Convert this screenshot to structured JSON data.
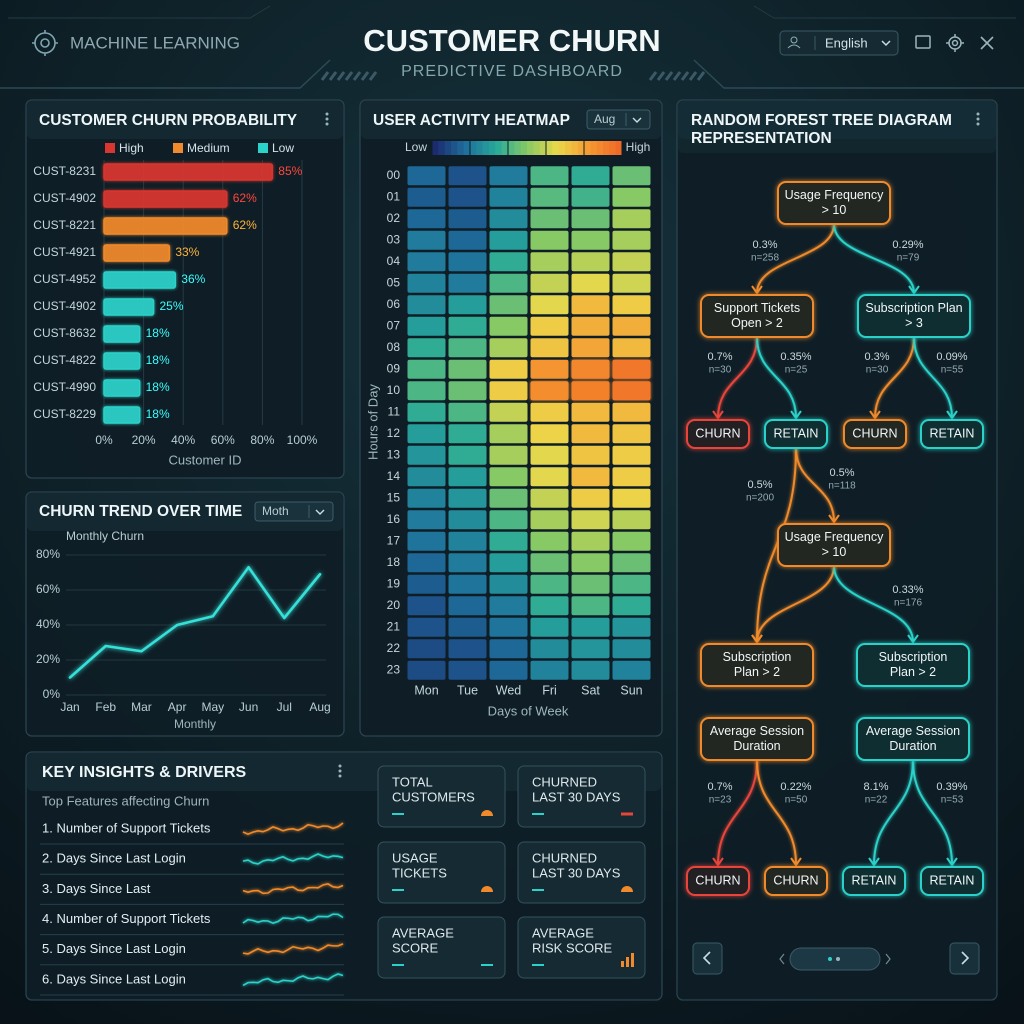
{
  "header": {
    "brand": "MACHINE LEARNING",
    "title": "CUSTOMER CHURN",
    "subtitle": "PREDICTIVE DASHBOARD",
    "language": "English"
  },
  "chart_data": [
    {
      "type": "bar",
      "title": "CUSTOMER CHURN PROBABILITY",
      "x_label": "Customer ID",
      "legend": [
        {
          "name": "High",
          "color": "#d8362f"
        },
        {
          "name": "Medium",
          "color": "#f08a2c"
        },
        {
          "name": "Low",
          "color": "#2bd2c9"
        }
      ],
      "categories": [
        "CUST-8231",
        "CUST-4902",
        "CUST-8221",
        "CUST-4921",
        "CUST-4952",
        "CUST-4902",
        "CUST-8632",
        "CUST-4822",
        "CUST-4990",
        "CUST-8229"
      ],
      "values": [
        85,
        62,
        62,
        33,
        36,
        25,
        18,
        18,
        18,
        18
      ],
      "value_labels": [
        "85%",
        "62%",
        "62%",
        "33%",
        "36%",
        "25%",
        "18%",
        "18%",
        "18%",
        "18%"
      ],
      "colors": [
        "#d8362f",
        "#d8362f",
        "#f08a2c",
        "#f08a2c",
        "#2bd2c9",
        "#2bd2c9",
        "#2bd2c9",
        "#2bd2c9",
        "#2bd2c9",
        "#2bd2c9"
      ],
      "xlim": [
        0,
        100
      ],
      "xticks": [
        {
          "value": 0,
          "label": "0%"
        },
        {
          "value": 20,
          "label": "20%"
        },
        {
          "value": 40,
          "label": "40%"
        },
        {
          "value": 60,
          "label": "60%"
        },
        {
          "value": 80,
          "label": "80%"
        },
        {
          "value": 100,
          "label": "100%"
        }
      ],
      "grid": true
    },
    {
      "type": "line",
      "title": "CHURN TREND OVER TIME",
      "dropdown": "Moth",
      "x_label": "Monthly",
      "categories": [
        "Jan",
        "Feb",
        "Mar",
        "Apr",
        "May",
        "Jun",
        "Jul",
        "Aug"
      ],
      "series": [
        {
          "name": "Monthly Churn",
          "color": "#35e0d8",
          "values": [
            10,
            28,
            25,
            40,
            45,
            73,
            44,
            69
          ]
        }
      ],
      "ylim": [
        0,
        80
      ],
      "yticks": [
        {
          "value": 0,
          "label": "0%"
        },
        {
          "value": 20,
          "label": "20%"
        },
        {
          "value": 40,
          "label": "40%"
        },
        {
          "value": 60,
          "label": "60%"
        },
        {
          "value": 80,
          "label": "80%"
        }
      ]
    },
    {
      "type": "heatmap",
      "title": "USER ACTIVITY HEATMAP",
      "dropdown": "Aug",
      "x_label": "Days of Week",
      "y_label": "Hours of Day",
      "colorbar_labels": [
        "Low",
        "High"
      ],
      "colorscale": [
        "#1c2a6e",
        "#1e6f9c",
        "#27a99a",
        "#86c965",
        "#ecd84a",
        "#f59a32",
        "#ef6a27"
      ],
      "zlim": [
        0,
        100
      ],
      "x_categories": [
        "Mon",
        "Tue",
        "Wed",
        "Fri",
        "Sat",
        "Sun"
      ],
      "y_categories": [
        "00",
        "01",
        "02",
        "03",
        "04",
        "05",
        "06",
        "07",
        "08",
        "09",
        "10",
        "11",
        "12",
        "13",
        "14",
        "15",
        "16",
        "17",
        "18",
        "19",
        "20",
        "21",
        "22",
        "23"
      ],
      "values": [
        [
          15,
          10,
          20,
          40,
          35,
          45
        ],
        [
          12,
          10,
          22,
          42,
          38,
          50
        ],
        [
          15,
          12,
          25,
          45,
          45,
          55
        ],
        [
          20,
          15,
          30,
          50,
          50,
          55
        ],
        [
          20,
          18,
          35,
          55,
          58,
          60
        ],
        [
          22,
          20,
          40,
          60,
          65,
          62
        ],
        [
          25,
          30,
          45,
          65,
          75,
          70
        ],
        [
          30,
          35,
          50,
          70,
          78,
          78
        ],
        [
          35,
          40,
          55,
          72,
          80,
          75
        ],
        [
          40,
          45,
          70,
          85,
          90,
          95
        ],
        [
          40,
          45,
          70,
          88,
          92,
          95
        ],
        [
          35,
          40,
          60,
          70,
          75,
          75
        ],
        [
          30,
          35,
          55,
          68,
          75,
          72
        ],
        [
          28,
          35,
          55,
          65,
          72,
          70
        ],
        [
          25,
          30,
          50,
          65,
          75,
          70
        ],
        [
          22,
          28,
          45,
          60,
          70,
          68
        ],
        [
          20,
          25,
          40,
          55,
          62,
          58
        ],
        [
          18,
          22,
          35,
          50,
          55,
          50
        ],
        [
          15,
          20,
          30,
          45,
          50,
          45
        ],
        [
          12,
          18,
          25,
          40,
          45,
          40
        ],
        [
          10,
          15,
          20,
          35,
          40,
          35
        ],
        [
          10,
          12,
          18,
          30,
          30,
          28
        ],
        [
          8,
          10,
          15,
          25,
          28,
          25
        ],
        [
          8,
          10,
          15,
          22,
          25,
          22
        ]
      ]
    }
  ],
  "tree": {
    "title": [
      "RANDOM FOREST TREE DIAGRAM",
      "REPRESENTATION"
    ],
    "nodes": [
      {
        "lines": [
          "Usage Frequency",
          "> 10"
        ],
        "color": "#f08a2c"
      },
      {
        "lines": [
          "Support Tickets",
          "Open > 2"
        ],
        "color": "#f08a2c"
      },
      {
        "lines": [
          "Subscription Plan",
          "> 3"
        ],
        "color": "#2bd2c9"
      },
      {
        "lines": [
          "CHURN"
        ],
        "color": "#e8453a"
      },
      {
        "lines": [
          "RETAIN"
        ],
        "color": "#2bd2c9"
      },
      {
        "lines": [
          "CHURN"
        ],
        "color": "#f08a2c"
      },
      {
        "lines": [
          "RETAIN"
        ],
        "color": "#2bd2c9"
      },
      {
        "lines": [
          "Usage Frequency",
          "> 10"
        ],
        "color": "#f08a2c"
      },
      {
        "lines": [
          "Subscription",
          "Plan > 2"
        ],
        "color": "#f08a2c"
      },
      {
        "lines": [
          "Subscription",
          "Plan > 2"
        ],
        "color": "#2bd2c9"
      },
      {
        "lines": [
          "Average Session",
          "Duration"
        ],
        "color": "#f08a2c"
      },
      {
        "lines": [
          "Average Session",
          "Duration"
        ],
        "color": "#2bd2c9"
      },
      {
        "lines": [
          "CHURN"
        ],
        "color": "#e8453a"
      },
      {
        "lines": [
          "CHURN"
        ],
        "color": "#f08a2c"
      },
      {
        "lines": [
          "RETAIN"
        ],
        "color": "#2bd2c9"
      },
      {
        "lines": [
          "RETAIN"
        ],
        "color": "#2bd2c9"
      }
    ],
    "edge_labels": [
      {
        "share": "0.3%",
        "n": "n=258"
      },
      {
        "share": "0.29%",
        "n": "n=79"
      },
      {
        "share": "0.7%",
        "n": "n=30"
      },
      {
        "share": "0.35%",
        "n": "n=25"
      },
      {
        "share": "0.3%",
        "n": "n=30"
      },
      {
        "share": "0.09%",
        "n": "n=55"
      },
      {
        "share": "0.5%",
        "n": "n=200"
      },
      {
        "share": "0.5%",
        "n": "n=118"
      },
      {
        "share": "0.33%",
        "n": "n=176"
      },
      {
        "share": "0.7%",
        "n": "n=23"
      },
      {
        "share": "0.22%",
        "n": "n=50"
      },
      {
        "share": "8.1%",
        "n": "n=22"
      },
      {
        "share": "0.39%",
        "n": "n=53"
      }
    ]
  },
  "insights": {
    "title": "KEY INSIGHTS & DRIVERS",
    "subtitle": "Top Features affecting Churn",
    "items": [
      "1. Number of Support Tickets",
      "2. Days Since Last Login",
      "3. Days Since Last",
      "4. Number of Support Tickets",
      "5. Days Since Last Login",
      "6. Days Since Last Login"
    ],
    "kpis": [
      [
        "TOTAL",
        "CUSTOMERS"
      ],
      [
        "CHURNED",
        "LAST 30 DAYS"
      ],
      [
        "USAGE",
        "TICKETS"
      ],
      [
        "CHURNED",
        "LAST 30 DAYS"
      ],
      [
        "AVERAGE",
        "SCORE"
      ],
      [
        "AVERAGE",
        "RISK SCORE"
      ]
    ]
  }
}
